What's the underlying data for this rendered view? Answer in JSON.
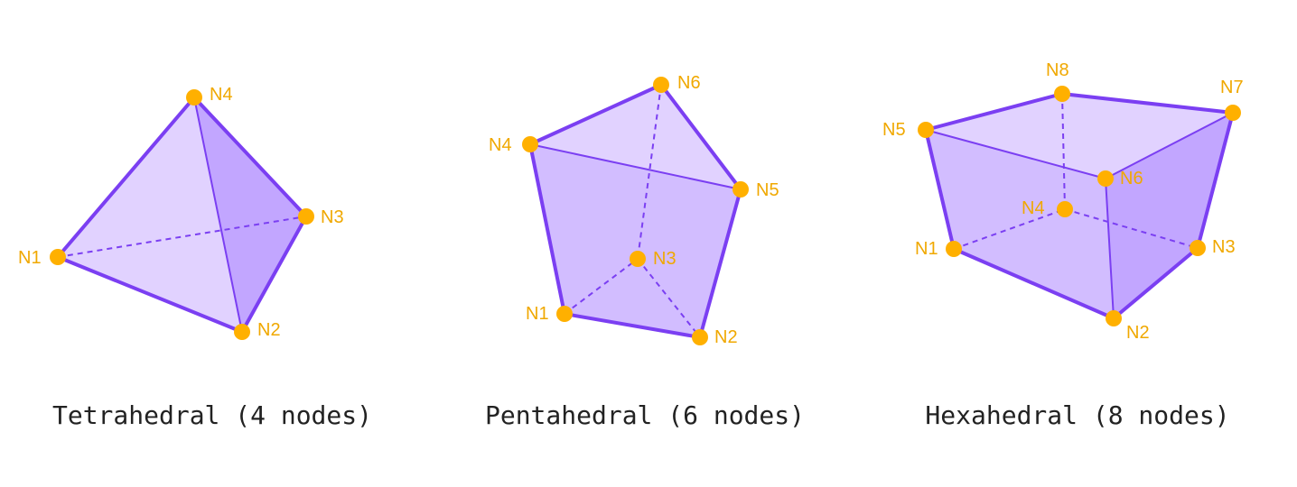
{
  "colors": {
    "edge": "#7b3ff2",
    "face_light": "#e1d2ff",
    "face_mid": "#d2bdff",
    "face_dark": "#c2a6ff",
    "node": "#ffb000",
    "label": "#f0a800",
    "caption": "#222222"
  },
  "shapes": [
    {
      "caption": "Tetrahedral (4 nodes)",
      "nodes": [
        {
          "id": "N1",
          "label": "N1"
        },
        {
          "id": "N2",
          "label": "N2"
        },
        {
          "id": "N3",
          "label": "N3"
        },
        {
          "id": "N4",
          "label": "N4"
        }
      ]
    },
    {
      "caption": "Pentahedral (6 nodes)",
      "nodes": [
        {
          "id": "N1",
          "label": "N1"
        },
        {
          "id": "N2",
          "label": "N2"
        },
        {
          "id": "N3",
          "label": "N3"
        },
        {
          "id": "N4",
          "label": "N4"
        },
        {
          "id": "N5",
          "label": "N5"
        },
        {
          "id": "N6",
          "label": "N6"
        }
      ]
    },
    {
      "caption": "Hexahedral (8 nodes)",
      "nodes": [
        {
          "id": "N1",
          "label": "N1"
        },
        {
          "id": "N2",
          "label": "N2"
        },
        {
          "id": "N3",
          "label": "N3"
        },
        {
          "id": "N4",
          "label": "N4"
        },
        {
          "id": "N5",
          "label": "N5"
        },
        {
          "id": "N6",
          "label": "N6"
        },
        {
          "id": "N7",
          "label": "N7"
        },
        {
          "id": "N8",
          "label": "N8"
        }
      ]
    }
  ]
}
